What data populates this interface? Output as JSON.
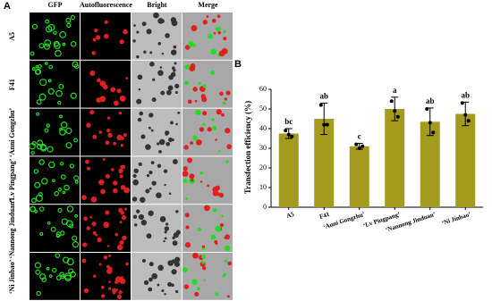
{
  "panel_a": {
    "label": "A",
    "columns": [
      "GFP",
      "Autofluorescence",
      "Bright",
      "Merge"
    ],
    "rows": [
      "A5",
      "F41",
      "‘Anni Gongzhu’",
      "‘Lv Pingpang’",
      "‘Nannong Jinduan’",
      "‘Ni Jinbao’"
    ]
  },
  "chart_data": {
    "type": "bar",
    "panel_label": "B",
    "y_label": "Transfection efficiency (%)",
    "categories": [
      "A5",
      "F41",
      "‘Anni Gongzhu’",
      "‘Lv Pingpang’",
      "‘Nannong Jinduan’",
      "‘Ni Jinbao’"
    ],
    "values": [
      37.5,
      45,
      31,
      50,
      43.5,
      47.5
    ],
    "errors": [
      2.5,
      8,
      1.5,
      6,
      7,
      6
    ],
    "points": [
      [
        39,
        37,
        36
      ],
      [
        52,
        42,
        42
      ],
      [
        32,
        30,
        31
      ],
      [
        54,
        49,
        46
      ],
      [
        50,
        43,
        38
      ],
      [
        53,
        47,
        44
      ]
    ],
    "letters": [
      "bc",
      "ab",
      "c",
      "a",
      "ab",
      "ab"
    ],
    "color": "#a39a1e",
    "ylim": [
      0,
      60
    ],
    "yticks": [
      0,
      10,
      20,
      30,
      40,
      50,
      60
    ]
  }
}
